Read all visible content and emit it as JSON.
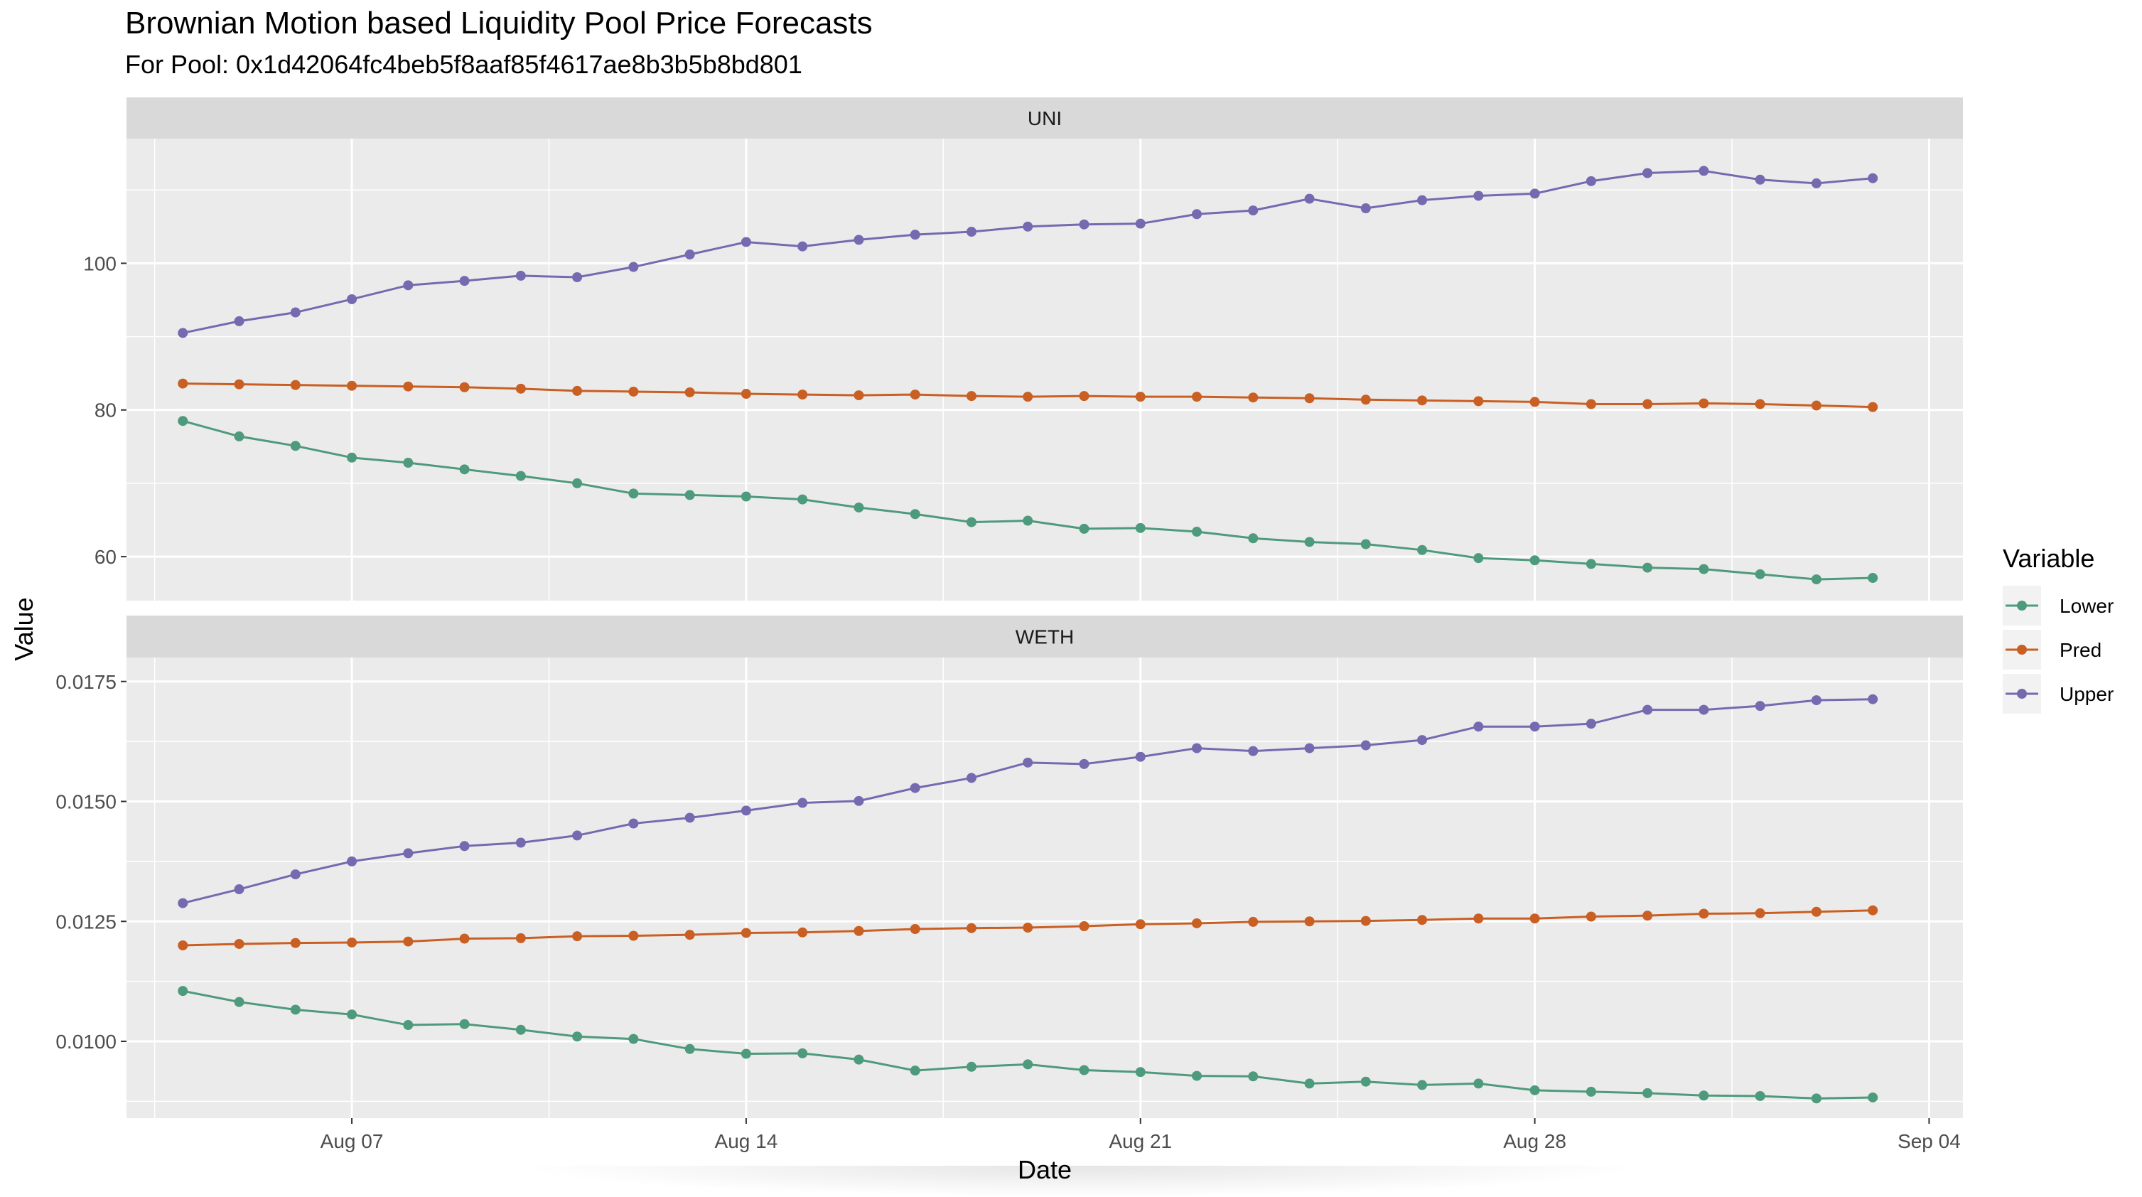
{
  "title": "Brownian Motion based Liquidity Pool Price Forecasts",
  "subtitle": "For Pool: 0x1d42064fc4beb5f8aaf85f4617ae8b3b5b8bd801",
  "colors": {
    "panel_bg": "#ebebeb",
    "strip_bg": "#d9d9d9",
    "grid": "#ffffff",
    "Lower": "#4e9a7c",
    "Pred": "#c95f22",
    "Upper": "#7569b0"
  },
  "chart_data": {
    "type": "line",
    "xlabel": "Date",
    "ylabel": "Value",
    "x_start": "2023-08-04",
    "x_ticks": [
      "Aug 07",
      "Aug 14",
      "Aug 21",
      "Aug 28",
      "Sep 04"
    ],
    "legend": {
      "title": "Variable",
      "position": "right",
      "entries": [
        "Lower",
        "Pred",
        "Upper"
      ]
    },
    "grid": true,
    "panels": [
      {
        "strip": "UNI",
        "ylim": [
          54,
          117
        ],
        "y_ticks": [
          "60",
          "80",
          "100"
        ],
        "series": [
          {
            "name": "Lower",
            "values": [
              78.5,
              76.4,
              75.1,
              73.5,
              72.8,
              71.9,
              71.0,
              70.0,
              68.6,
              68.4,
              68.2,
              67.8,
              66.7,
              65.8,
              64.7,
              64.9,
              63.8,
              63.9,
              63.4,
              62.5,
              62.0,
              61.7,
              60.9,
              59.8,
              59.5,
              59.0,
              58.5,
              58.3,
              57.6,
              56.9,
              57.1
            ]
          },
          {
            "name": "Pred",
            "values": [
              83.6,
              83.5,
              83.4,
              83.3,
              83.2,
              83.1,
              82.9,
              82.6,
              82.5,
              82.4,
              82.2,
              82.1,
              82.0,
              82.1,
              81.9,
              81.8,
              81.9,
              81.8,
              81.8,
              81.7,
              81.6,
              81.4,
              81.3,
              81.2,
              81.1,
              80.8,
              80.8,
              80.9,
              80.8,
              80.6,
              80.4
            ]
          },
          {
            "name": "Upper",
            "values": [
              90.5,
              92.1,
              93.3,
              95.1,
              97.0,
              97.6,
              98.3,
              98.1,
              99.5,
              101.2,
              102.9,
              102.3,
              103.2,
              103.9,
              104.3,
              105.0,
              105.3,
              105.4,
              106.7,
              107.2,
              108.8,
              107.5,
              108.6,
              109.2,
              109.5,
              111.2,
              112.3,
              112.6,
              111.4,
              110.9,
              111.6
            ]
          }
        ]
      },
      {
        "strip": "WETH",
        "ylim": [
          0.0084,
          0.018
        ],
        "y_ticks": [
          "0.0100",
          "0.0125",
          "0.0150",
          "0.0175"
        ],
        "series": [
          {
            "name": "Lower",
            "values": [
              0.01105,
              0.01082,
              0.01066,
              0.01056,
              0.01034,
              0.01036,
              0.01024,
              0.0101,
              0.01005,
              0.00984,
              0.00974,
              0.00975,
              0.00962,
              0.00939,
              0.00947,
              0.00952,
              0.0094,
              0.00936,
              0.00928,
              0.00927,
              0.00912,
              0.00916,
              0.00909,
              0.00912,
              0.00898,
              0.00895,
              0.00892,
              0.00887,
              0.00886,
              0.00881,
              0.00883
            ]
          },
          {
            "name": "Pred",
            "values": [
              0.012,
              0.01203,
              0.01205,
              0.01206,
              0.01208,
              0.01214,
              0.01215,
              0.01219,
              0.0122,
              0.01222,
              0.01226,
              0.01227,
              0.0123,
              0.01234,
              0.01236,
              0.01237,
              0.0124,
              0.01244,
              0.01246,
              0.01249,
              0.0125,
              0.01251,
              0.01253,
              0.01256,
              0.01256,
              0.0126,
              0.01262,
              0.01266,
              0.01267,
              0.0127,
              0.01273
            ]
          },
          {
            "name": "Upper",
            "values": [
              0.01288,
              0.01317,
              0.01348,
              0.01375,
              0.01392,
              0.01407,
              0.01414,
              0.01429,
              0.01454,
              0.01466,
              0.01481,
              0.01497,
              0.01501,
              0.01528,
              0.01549,
              0.01581,
              0.01578,
              0.01593,
              0.01611,
              0.01605,
              0.01611,
              0.01617,
              0.01628,
              0.01656,
              0.01656,
              0.01662,
              0.01691,
              0.01691,
              0.01699,
              0.01711,
              0.01713
            ]
          }
        ]
      }
    ]
  }
}
